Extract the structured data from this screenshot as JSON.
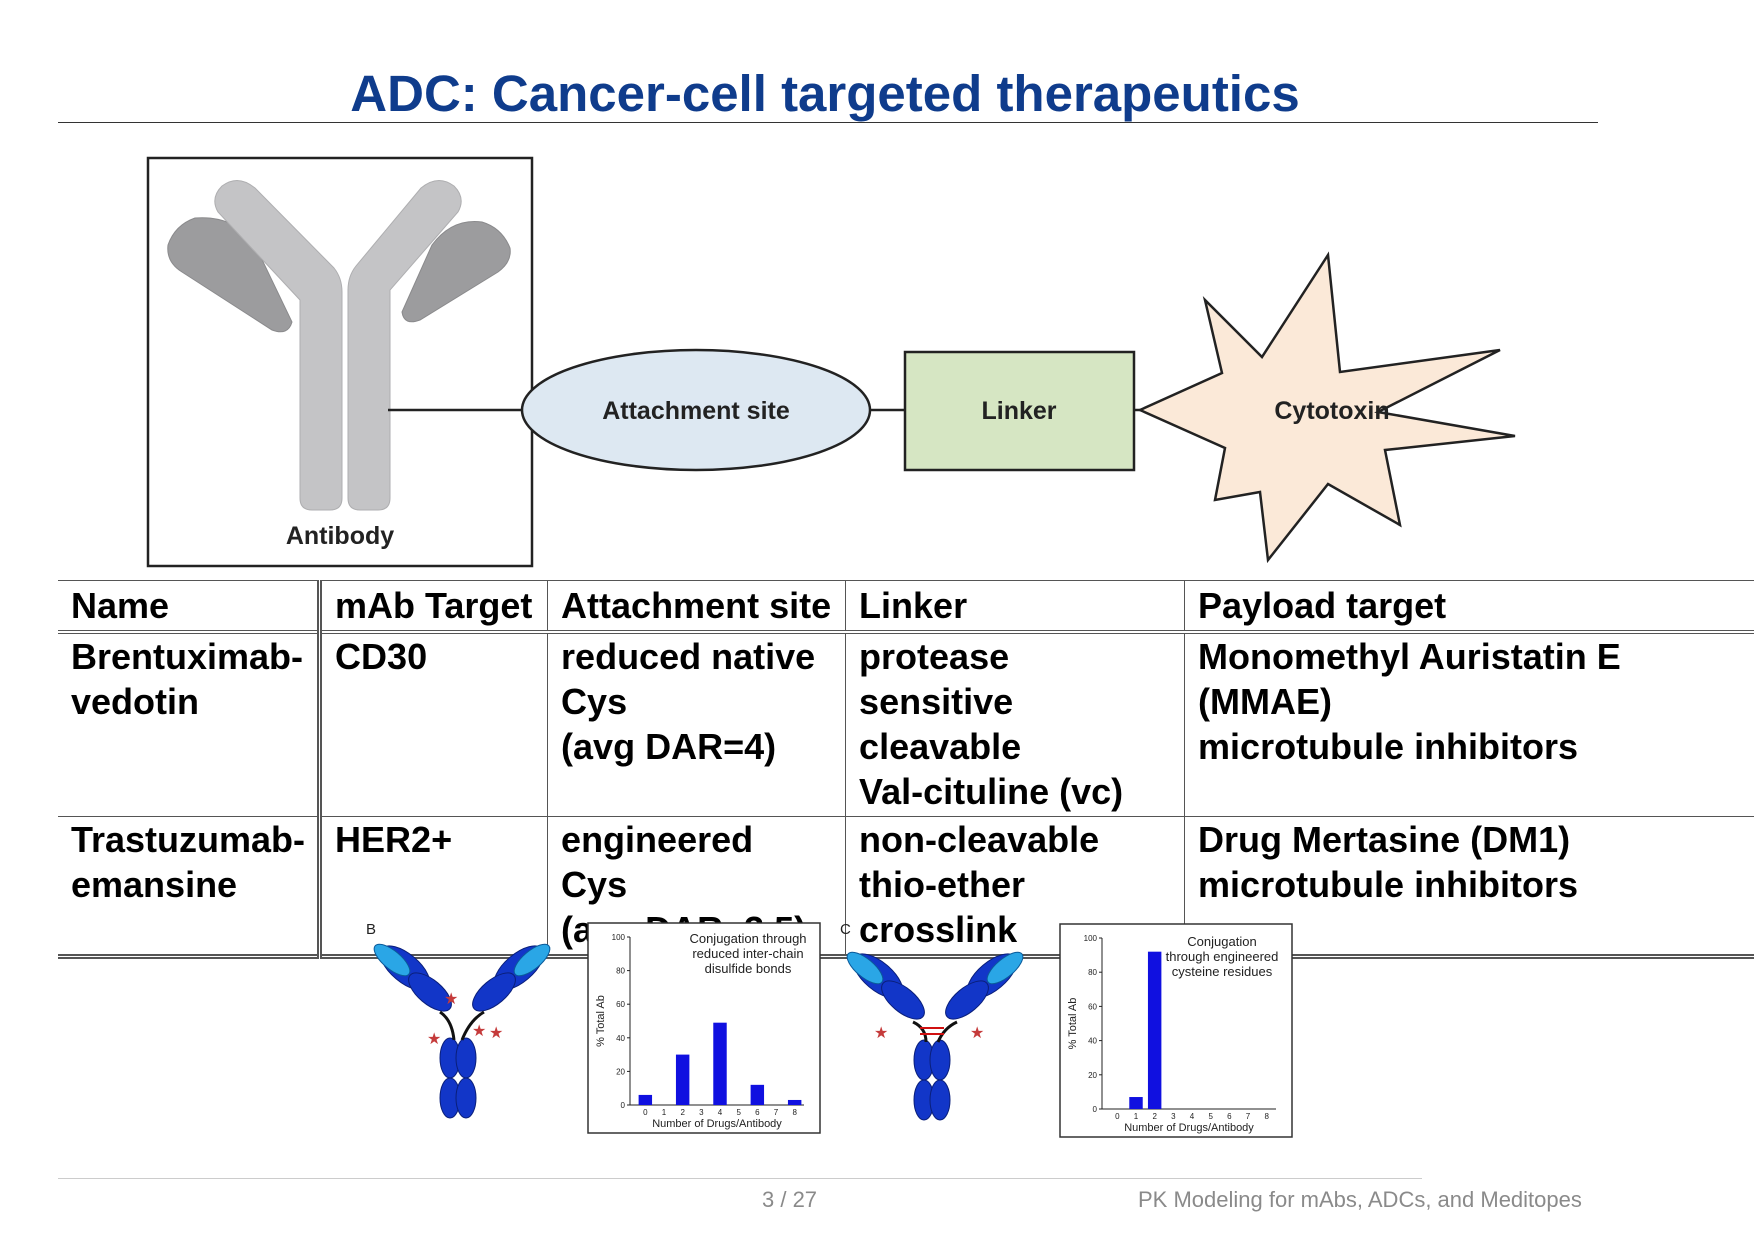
{
  "slide": {
    "title": "ADC: Cancer-cell targeted therapeutics"
  },
  "diagram": {
    "antibody_label": "Antibody",
    "attachment_label": "Attachment site",
    "linker_label": "Linker",
    "cytotoxin_label": "Cytotoxin",
    "colors": {
      "antibody_light": "#c4c4c6",
      "antibody_dark": "#9c9c9e",
      "attachment_fill": "#dde8f2",
      "linker_fill": "#d6e6c3",
      "cytotoxin_fill": "#fbe9d8"
    }
  },
  "table": {
    "headers": [
      "Name",
      "mAb Target",
      "Attachment site",
      "Linker",
      "Payload target"
    ],
    "rows": [
      {
        "name": [
          "Brentuximab-",
          "vedotin"
        ],
        "target": [
          "CD30"
        ],
        "attachment": [
          "reduced native",
          "Cys",
          "(avg DAR=4)"
        ],
        "linker": [
          "protease sensitive",
          "cleavable",
          "Val-cituline (vc)"
        ],
        "payload": [
          "Monomethyl Auristatin E (MMAE)",
          "microtubule inhibitors"
        ]
      },
      {
        "name": [
          "Trastuzumab-",
          "emansine"
        ],
        "target": [
          "HER2+"
        ],
        "attachment": [
          "engineered",
          "Cys",
          "(avg DAR=3.5)"
        ],
        "linker": [
          "non-cleavable",
          "thio-ether",
          "crosslink"
        ],
        "payload": [
          "Drug Mertasine (DM1)",
          "microtubule inhibitors"
        ]
      }
    ]
  },
  "panels": [
    {
      "letter": "B",
      "chart_title": [
        "Conjugation through",
        "reduced inter-chain",
        "disulfide bonds"
      ]
    },
    {
      "letter": "C",
      "chart_title": [
        "Conjugation",
        "through engineered",
        "cysteine residues"
      ]
    }
  ],
  "chart_data": [
    {
      "type": "bar",
      "title": "Conjugation through reduced inter-chain disulfide bonds",
      "xlabel": "Number of Drugs/Antibody",
      "ylabel": "% Total Ab",
      "categories": [
        "0",
        "1",
        "2",
        "3",
        "4",
        "5",
        "6",
        "7",
        "8"
      ],
      "values": [
        6,
        0,
        30,
        0,
        49,
        0,
        12,
        0,
        3
      ],
      "ylim": [
        0,
        100
      ],
      "yticks": [
        "0",
        "20",
        "40",
        "60",
        "80",
        "100"
      ],
      "bar_color": "#1010e0"
    },
    {
      "type": "bar",
      "title": "Conjugation through engineered cysteine residues",
      "xlabel": "Number of Drugs/Antibody",
      "ylabel": "% Total Ab",
      "categories": [
        "0",
        "1",
        "2",
        "3",
        "4",
        "5",
        "6",
        "7",
        "8"
      ],
      "values": [
        0,
        7,
        92,
        0,
        0,
        0,
        0,
        0,
        0
      ],
      "ylim": [
        0,
        100
      ],
      "yticks": [
        "0",
        "20",
        "40",
        "60",
        "80",
        "100"
      ],
      "bar_color": "#1010e0"
    }
  ],
  "footer": {
    "page": "3 / 27",
    "deck_title": "PK Modeling for mAbs, ADCs, and Meditopes"
  }
}
